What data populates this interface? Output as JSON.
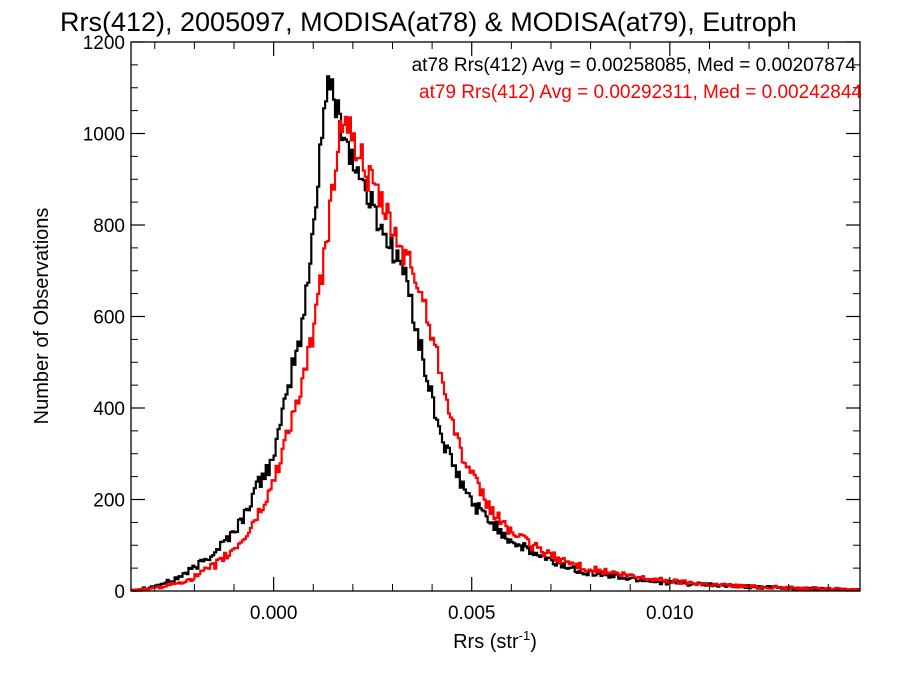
{
  "chart_data": {
    "type": "line",
    "style": "step-histogram",
    "title": "Rrs(412), 2005097, MODISA(at78) & MODISA(at79), Eutroph",
    "xlabel": "Rrs (str",
    "xlabel_sup": "-1",
    "xlabel_close": ")",
    "ylabel": "Number of Observations",
    "xlim": [
      -0.0036,
      0.0148
    ],
    "ylim": [
      0,
      1200
    ],
    "x_ticks": [
      0.0,
      0.005,
      0.01
    ],
    "x_tick_labels": [
      "0.000",
      "0.005",
      "0.010"
    ],
    "y_ticks": [
      0,
      200,
      400,
      600,
      800,
      1000,
      1200
    ],
    "y_tick_labels": [
      "0",
      "200",
      "400",
      "600",
      "800",
      "1000",
      "1200"
    ],
    "grid": false,
    "series": [
      {
        "name": "at78",
        "color": "#000000",
        "stat_text": "at78 Rrs(412) Avg = 0.00258085, Med = 0.00207874",
        "points": [
          [
            -0.0036,
            2
          ],
          [
            -0.003,
            10
          ],
          [
            -0.0025,
            25
          ],
          [
            -0.002,
            50
          ],
          [
            -0.0015,
            85
          ],
          [
            -0.001,
            130
          ],
          [
            -0.0007,
            170
          ],
          [
            -0.0005,
            215
          ],
          [
            -0.0003,
            245
          ],
          [
            -0.0001,
            275
          ],
          [
            0.0001,
            330
          ],
          [
            0.0003,
            410
          ],
          [
            0.0005,
            500
          ],
          [
            0.0007,
            560
          ],
          [
            0.0009,
            700
          ],
          [
            0.0011,
            880
          ],
          [
            0.0012,
            990
          ],
          [
            0.0013,
            1070
          ],
          [
            0.0014,
            1110
          ],
          [
            0.0015,
            1080
          ],
          [
            0.0016,
            1060
          ],
          [
            0.0017,
            1030
          ],
          [
            0.0018,
            990
          ],
          [
            0.0019,
            970
          ],
          [
            0.002,
            940
          ],
          [
            0.0022,
            900
          ],
          [
            0.0024,
            860
          ],
          [
            0.0026,
            820
          ],
          [
            0.0028,
            780
          ],
          [
            0.003,
            750
          ],
          [
            0.0032,
            720
          ],
          [
            0.0034,
            660
          ],
          [
            0.0036,
            580
          ],
          [
            0.0038,
            490
          ],
          [
            0.004,
            420
          ],
          [
            0.0042,
            350
          ],
          [
            0.0044,
            300
          ],
          [
            0.0046,
            260
          ],
          [
            0.0048,
            225
          ],
          [
            0.005,
            195
          ],
          [
            0.0055,
            150
          ],
          [
            0.006,
            110
          ],
          [
            0.0065,
            85
          ],
          [
            0.007,
            65
          ],
          [
            0.0075,
            50
          ],
          [
            0.008,
            40
          ],
          [
            0.009,
            27
          ],
          [
            0.01,
            18
          ],
          [
            0.011,
            13
          ],
          [
            0.012,
            9
          ],
          [
            0.013,
            6
          ],
          [
            0.014,
            4
          ],
          [
            0.0148,
            3
          ]
        ]
      },
      {
        "name": "at79",
        "color": "#ff0000",
        "stat_text": "at79 Rrs(412) Avg = 0.00292311, Med = 0.00242844",
        "points": [
          [
            -0.0036,
            1
          ],
          [
            -0.003,
            6
          ],
          [
            -0.0025,
            15
          ],
          [
            -0.002,
            30
          ],
          [
            -0.0015,
            55
          ],
          [
            -0.001,
            90
          ],
          [
            -0.0007,
            120
          ],
          [
            -0.0005,
            150
          ],
          [
            -0.0003,
            180
          ],
          [
            -0.0001,
            215
          ],
          [
            0.0001,
            270
          ],
          [
            0.0003,
            330
          ],
          [
            0.0005,
            390
          ],
          [
            0.0007,
            440
          ],
          [
            0.0009,
            520
          ],
          [
            0.0011,
            620
          ],
          [
            0.0013,
            740
          ],
          [
            0.0015,
            880
          ],
          [
            0.0016,
            960
          ],
          [
            0.0017,
            1020
          ],
          [
            0.0018,
            1050
          ],
          [
            0.0019,
            1010
          ],
          [
            0.002,
            980
          ],
          [
            0.0022,
            950
          ],
          [
            0.0024,
            900
          ],
          [
            0.0026,
            870
          ],
          [
            0.0028,
            830
          ],
          [
            0.003,
            790
          ],
          [
            0.0032,
            750
          ],
          [
            0.0034,
            720
          ],
          [
            0.0036,
            680
          ],
          [
            0.0038,
            630
          ],
          [
            0.004,
            560
          ],
          [
            0.0042,
            490
          ],
          [
            0.0044,
            420
          ],
          [
            0.0046,
            340
          ],
          [
            0.0048,
            290
          ],
          [
            0.005,
            250
          ],
          [
            0.0055,
            175
          ],
          [
            0.006,
            130
          ],
          [
            0.0065,
            100
          ],
          [
            0.007,
            78
          ],
          [
            0.0075,
            60
          ],
          [
            0.008,
            48
          ],
          [
            0.009,
            32
          ],
          [
            0.01,
            22
          ],
          [
            0.011,
            15
          ],
          [
            0.012,
            10
          ],
          [
            0.013,
            7
          ],
          [
            0.014,
            5
          ],
          [
            0.0148,
            3
          ]
        ]
      }
    ]
  }
}
